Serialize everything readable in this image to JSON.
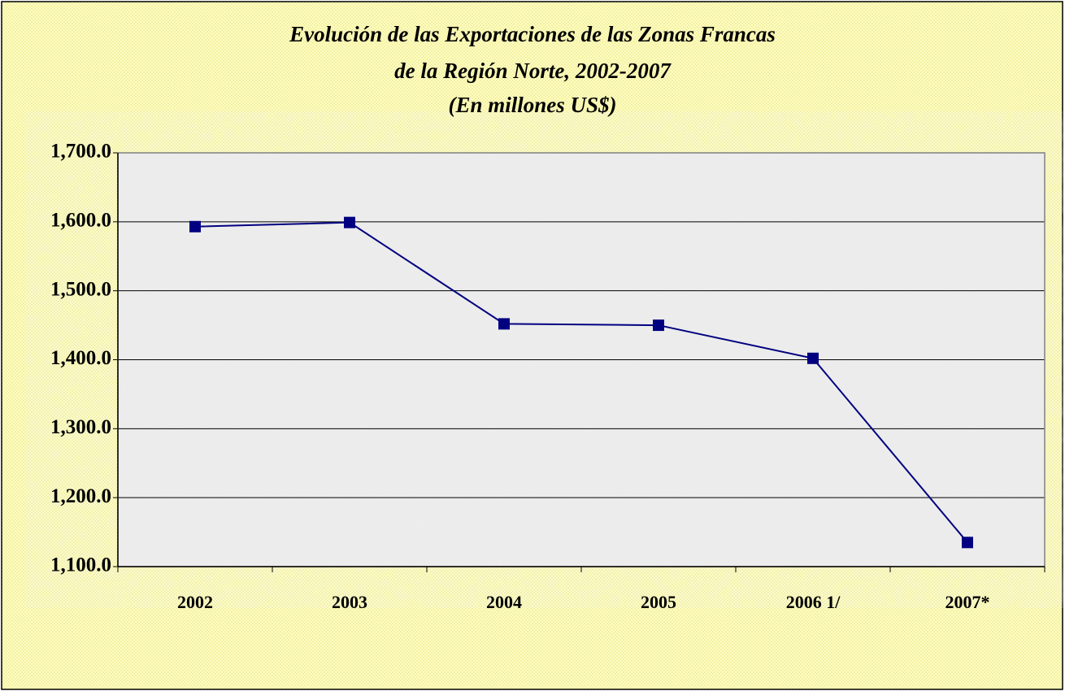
{
  "chart_data": {
    "type": "line",
    "title": [
      "Evolución de las Exportaciones de las Zonas Francas",
      "de la Región Norte, 2002-2007"
    ],
    "subtitle": "(En millones US$)",
    "categories": [
      "2002",
      "2003",
      "2004",
      "2005",
      "2006 1/",
      "2007*"
    ],
    "series": [
      {
        "name": "Exportaciones",
        "color": "#000080",
        "values": [
          1593,
          1599,
          1452,
          1450,
          1402,
          1135
        ]
      }
    ],
    "ylim": [
      1100,
      1700
    ],
    "yticks": [
      {
        "value": 1100,
        "label": "1,100.0"
      },
      {
        "value": 1200,
        "label": "1,200.0"
      },
      {
        "value": 1300,
        "label": "1,300.0"
      },
      {
        "value": 1400,
        "label": "1,400.0"
      },
      {
        "value": 1500,
        "label": "1,500.0"
      },
      {
        "value": 1600,
        "label": "1,600.0"
      },
      {
        "value": 1700,
        "label": "1,700.0"
      }
    ],
    "grid": true
  }
}
